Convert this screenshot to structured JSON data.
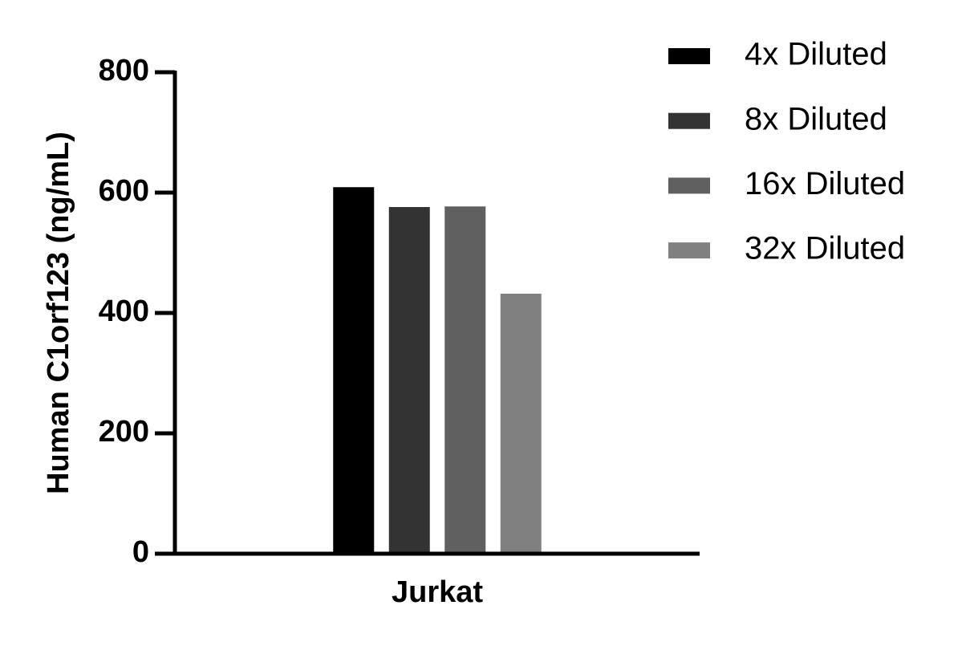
{
  "chart_data": {
    "type": "bar",
    "y_label": "Human C1orf123 (ng/mL)",
    "categories": [
      "Jurkat"
    ],
    "series": [
      {
        "name": "4x Diluted",
        "color": "#000000",
        "values": [
          609
        ]
      },
      {
        "name": "8x Diluted",
        "color": "#333333",
        "values": [
          576
        ]
      },
      {
        "name": "16x Diluted",
        "color": "#606060",
        "values": [
          577
        ]
      },
      {
        "name": "32x Diluted",
        "color": "#808080",
        "values": [
          432
        ]
      }
    ],
    "ylim": [
      0,
      800
    ],
    "yticks": [
      0,
      200,
      400,
      600,
      800
    ],
    "grid": false,
    "legend": "right"
  }
}
